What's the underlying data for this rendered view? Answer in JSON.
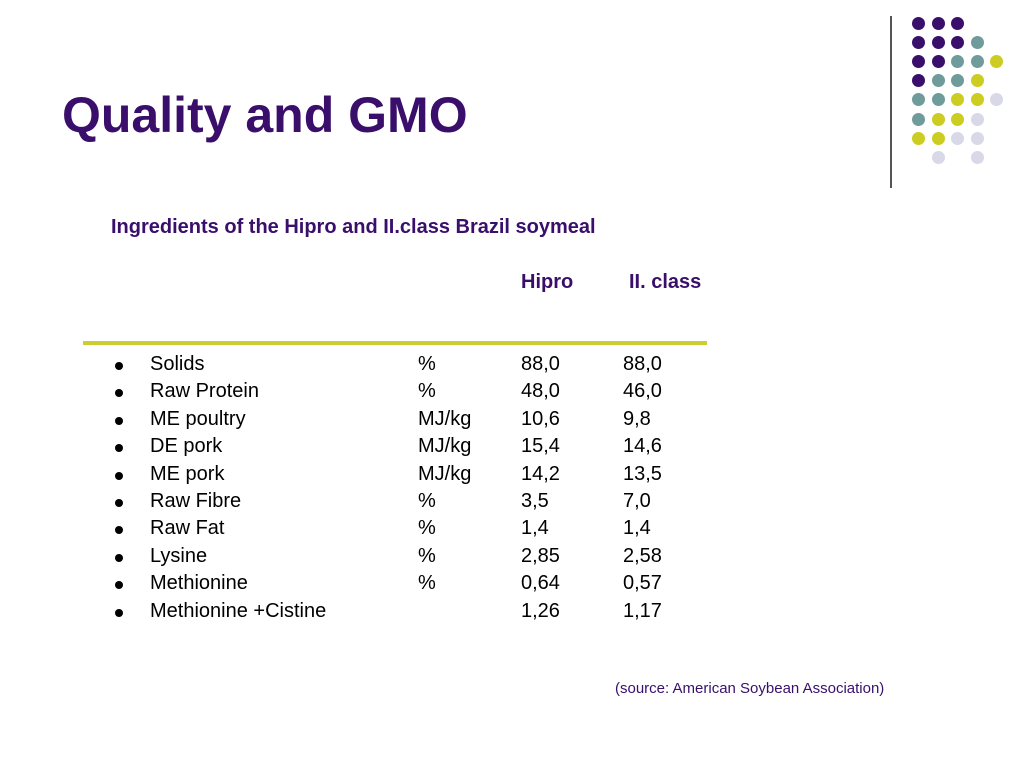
{
  "slide": {
    "title": "Quality and GMO",
    "subtitle": "Ingredients of the Hipro and II.class Brazil soymeal",
    "columns": {
      "hipro": "Hipro",
      "second_class": "II. class"
    },
    "rows": [
      {
        "name": "Solids",
        "unit": "%",
        "hipro": "88,0",
        "second_class": "88,0"
      },
      {
        "name": "Raw Protein",
        "unit": " %",
        "hipro": "48,0",
        "second_class": "46,0"
      },
      {
        "name": "ME poultry",
        "unit": "MJ/kg",
        "hipro": "10,6",
        "second_class": "9,8"
      },
      {
        "name": "DE pork",
        "unit": "MJ/kg",
        "hipro": "15,4",
        "second_class": "14,6"
      },
      {
        "name": "ME pork",
        "unit": "MJ/kg",
        "hipro": "14,2",
        "second_class": "13,5"
      },
      {
        "name": "Raw Fibre",
        "unit": "%",
        "hipro": "3,5",
        "second_class": "7,0"
      },
      {
        "name": "Raw Fat",
        "unit": "%",
        "hipro": "1,4",
        "second_class": "1,4"
      },
      {
        "name": "Lysine",
        "unit": "%",
        "hipro": "2,85",
        "second_class": "2,58"
      },
      {
        "name": "Methionine",
        "unit": "%",
        "hipro": "0,64",
        "second_class": "0,57"
      },
      {
        "name": "Methionine +Cistine",
        "unit": "",
        "hipro": "1,26",
        "second_class": "1,17"
      }
    ],
    "source": "(source: American Soybean Association)"
  },
  "theme": {
    "title_color": "#3a0f6b",
    "accent_rule_color": "#cccc33",
    "dot_colors": {
      "purple": "#3a0f6b",
      "teal": "#6f9b9b",
      "olive": "#cccc22",
      "lavender": "#d8d8e8"
    }
  }
}
